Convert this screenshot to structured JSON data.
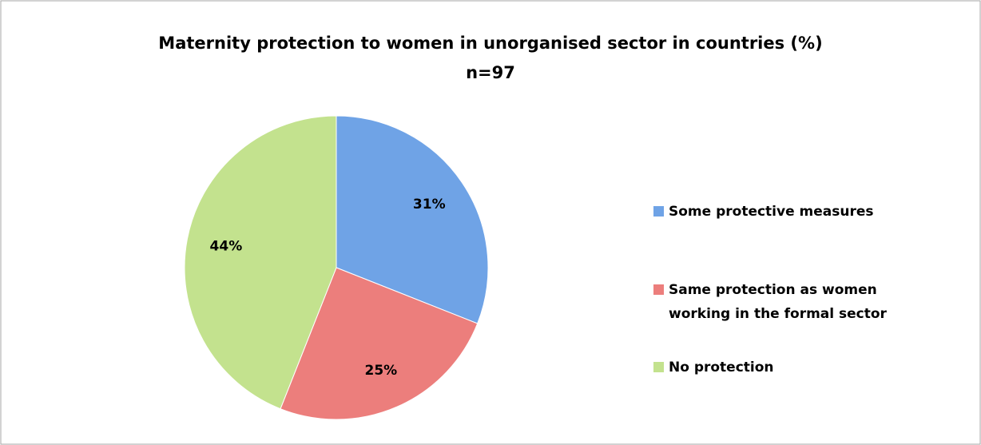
{
  "chart_data": {
    "type": "pie",
    "title": "Maternity protection to women in unorganised sector in countries (%)",
    "subtitle": "n=97",
    "categories": [
      "Some protective measures",
      "Same protection as women working in the formal sector",
      "No protection"
    ],
    "values": [
      31,
      25,
      44
    ],
    "value_labels": [
      "31%",
      "25%",
      "44%"
    ],
    "colors": [
      "#6fa3e6",
      "#ec7e7c",
      "#c3e28e"
    ],
    "legend": "right"
  }
}
